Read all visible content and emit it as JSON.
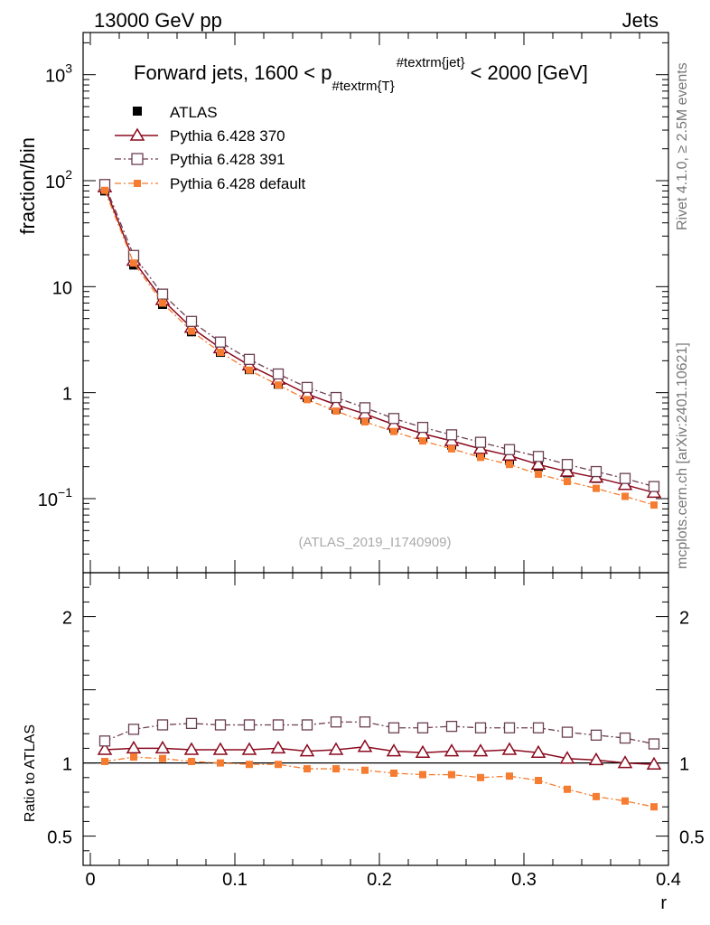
{
  "header": {
    "left": "13000 GeV pp",
    "right": "Jets"
  },
  "side_labels": {
    "rivet": "Rivet 4.1.0, ≥ 2.5M events",
    "mcplots": "mcplots.cern.ch [arXiv:2401.10621]"
  },
  "title_parts": {
    "pre": "Forward jets, 1600 < p",
    "sub": "#textrm{T}",
    "sup": "#textrm{jet}",
    "post": "< 2000 [GeV]"
  },
  "analysis_id": "(ATLAS_2019_I1740909)",
  "colors": {
    "atlas": "#000000",
    "p370": "#8b0a1f",
    "p391": "#6b3f52",
    "pdefault": "#f57c31"
  },
  "chart_data": [
    {
      "type": "line",
      "panel": "main",
      "yscale": "log",
      "title": "Forward jets, 1600 < p_{#textrm{T}}^{#textrm{jet}} < 2000 [GeV]",
      "xlabel": "",
      "ylabel": "fraction/bin",
      "xlim": [
        -0.005,
        0.4
      ],
      "ylim": [
        0.02,
        2500
      ],
      "yticks": [
        {
          "value": 1000,
          "base": "10",
          "exp": "3"
        },
        {
          "value": 100,
          "base": "10",
          "exp": "2"
        },
        {
          "value": 10,
          "base": "10",
          "exp": ""
        },
        {
          "value": 1,
          "base": "1",
          "exp": ""
        },
        {
          "value": 0.1,
          "base": "10",
          "exp": "−1"
        }
      ],
      "x": [
        0.01,
        0.03,
        0.05,
        0.07,
        0.09,
        0.11,
        0.13,
        0.15,
        0.17,
        0.19,
        0.21,
        0.23,
        0.25,
        0.27,
        0.29,
        0.31,
        0.33,
        0.35,
        0.37,
        0.39
      ],
      "legend_position": "top-left",
      "series": [
        {
          "name": "ATLAS",
          "marker": "filled-square",
          "style": "points",
          "values": [
            80,
            16,
            6.8,
            3.75,
            2.4,
            1.65,
            1.2,
            0.9,
            0.7,
            0.56,
            0.46,
            0.38,
            0.32,
            0.27,
            0.23,
            0.2,
            0.175,
            0.155,
            0.135,
            0.115
          ]
        },
        {
          "name": "Pythia 6.428 370",
          "marker": "open-triangle",
          "style": "solid",
          "values": [
            87,
            17.6,
            7.5,
            4.1,
            2.63,
            1.81,
            1.33,
            0.97,
            0.77,
            0.63,
            0.5,
            0.41,
            0.35,
            0.295,
            0.255,
            0.21,
            0.18,
            0.158,
            0.135,
            0.114
          ]
        },
        {
          "name": "Pythia 6.428 391",
          "marker": "open-square",
          "style": "dashdot",
          "values": [
            92,
            19.7,
            8.5,
            4.7,
            3.0,
            2.06,
            1.5,
            1.12,
            0.9,
            0.72,
            0.57,
            0.47,
            0.4,
            0.34,
            0.29,
            0.25,
            0.21,
            0.18,
            0.155,
            0.13
          ]
        },
        {
          "name": "Pythia 6.428 default",
          "marker": "filled-square-small",
          "style": "dashdot",
          "values": [
            81,
            16.7,
            7.0,
            3.8,
            2.4,
            1.63,
            1.18,
            0.86,
            0.67,
            0.53,
            0.43,
            0.35,
            0.295,
            0.245,
            0.21,
            0.17,
            0.145,
            0.125,
            0.105,
            0.087
          ]
        }
      ]
    },
    {
      "type": "line",
      "panel": "ratio",
      "yscale": "linear",
      "xlabel": "r",
      "ylabel": "Ratio to ATLAS",
      "xlim": [
        -0.005,
        0.4
      ],
      "ylim": [
        0.3,
        2.3
      ],
      "xticks": [
        {
          "value": 0,
          "label": "0"
        },
        {
          "value": 0.1,
          "label": "0.1"
        },
        {
          "value": 0.2,
          "label": "0.2"
        },
        {
          "value": 0.3,
          "label": "0.3"
        },
        {
          "value": 0.4,
          "label": "0.4"
        }
      ],
      "yticks": [
        {
          "value": 2,
          "label": "2"
        },
        {
          "value": 1,
          "label": "1"
        },
        {
          "value": 0.5,
          "label": "0.5"
        }
      ],
      "reference_line": 1.0,
      "x": [
        0.01,
        0.03,
        0.05,
        0.07,
        0.09,
        0.11,
        0.13,
        0.15,
        0.17,
        0.19,
        0.21,
        0.23,
        0.25,
        0.27,
        0.29,
        0.31,
        0.33,
        0.35,
        0.37,
        0.39
      ],
      "series": [
        {
          "name": "Pythia 6.428 370",
          "marker": "open-triangle",
          "style": "solid",
          "values": [
            1.09,
            1.1,
            1.1,
            1.09,
            1.09,
            1.09,
            1.1,
            1.08,
            1.09,
            1.11,
            1.08,
            1.07,
            1.08,
            1.08,
            1.09,
            1.07,
            1.03,
            1.02,
            1.0,
            0.99
          ]
        },
        {
          "name": "Pythia 6.428 391",
          "marker": "open-square",
          "style": "dashdot",
          "values": [
            1.15,
            1.23,
            1.26,
            1.27,
            1.26,
            1.26,
            1.26,
            1.26,
            1.28,
            1.28,
            1.24,
            1.24,
            1.25,
            1.24,
            1.24,
            1.24,
            1.21,
            1.19,
            1.17,
            1.13
          ]
        },
        {
          "name": "Pythia 6.428 default",
          "marker": "filled-square-small",
          "style": "dashdot",
          "values": [
            1.01,
            1.04,
            1.03,
            1.01,
            1.0,
            0.99,
            0.99,
            0.96,
            0.96,
            0.95,
            0.93,
            0.92,
            0.92,
            0.9,
            0.91,
            0.88,
            0.82,
            0.77,
            0.74,
            0.7
          ]
        }
      ]
    }
  ]
}
